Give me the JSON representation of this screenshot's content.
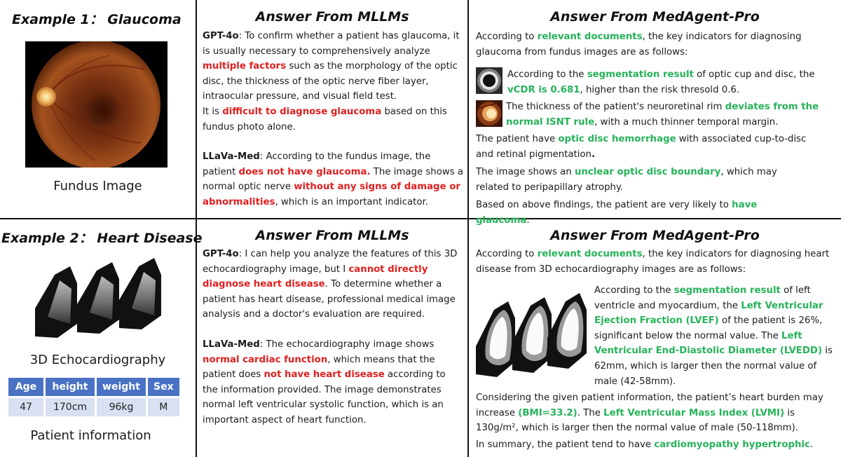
{
  "example1": {
    "title": "Example 1： Glaucoma",
    "image_caption": "Fundus Image",
    "mllm_header": "Answer From MLLMs",
    "agent_header": "Answer From MedAgent-Pro",
    "gpt": {
      "name": "GPT-4o",
      "t1": ": To confirm whether a patient has glaucoma, it is usually necessary to comprehensively analyze ",
      "h1": "multiple factors",
      "t2": " such as the morphology of the optic disc, the thickness of the optic nerve fiber layer, intraocular pressure, and visual field test.",
      "t3": "It is ",
      "h2": "difficult to diagnose glaucoma",
      "t4": " based on this fundus photo alone."
    },
    "llava": {
      "name": "LLaVa-Med",
      "t1": ": According to the fundus image, the patient ",
      "h1": "does not have glaucoma.",
      "t2": " The image shows a normal optic nerve ",
      "h2": "without any signs of damage or abnormalities",
      "t3": ", which is an important indicator."
    },
    "agent": {
      "p1a": "According to ",
      "p1h": "relevant documents",
      "p1b": ", the key indicators for diagnosing glaucoma from fundus images are as follows:",
      "p2a": "According to the ",
      "p2h1": "segmentation result",
      "p2b": " of optic cup and disc, the ",
      "p2h2": "vCDR is 0.681",
      "p2c": ", higher than the risk thresold 0.6.",
      "p3a": "The thickness of the patient's neuroretinal rim ",
      "p3h": "deviates from the normal ISNT rule",
      "p3b": ", with a much thinner temporal margin.",
      "p4a": "The patient have ",
      "p4h": "optic disc hemorrhage",
      "p4b": " with associated cup-to-disc and retinal pigmentation",
      "p4c": ".",
      "p5a": "The image shows an ",
      "p5h": "unclear optic disc boundary",
      "p5b": ", which may related to peripapillary atrophy.",
      "p6a": "Based on above findings, the patient are very likely to ",
      "p6h": "have glaucoma",
      "p6b": "."
    }
  },
  "example2": {
    "title": "Example 2： Heart Disease",
    "image_caption": "3D Echocardiography",
    "patient_caption": "Patient information",
    "table": {
      "headers": [
        "Age",
        "height",
        "weight",
        "Sex"
      ],
      "row": [
        "47",
        "170cm",
        "96kg",
        "M"
      ]
    },
    "mllm_header": "Answer From MLLMs",
    "agent_header": "Answer From MedAgent-Pro",
    "gpt": {
      "name": "GPT-4o",
      "t1": ": I can help you analyze the features of this 3D echocardiography image, but I ",
      "h1": "cannot directly diagnose heart disease",
      "t2": ". To determine whether a patient has heart disease, professional medical image analysis and a doctor's evaluation are required."
    },
    "llava": {
      "name": "LLaVa-Med",
      "t1": ": The echocardiography image shows ",
      "h1": "normal cardiac function",
      "t2": ", which means that the patient does ",
      "h2": "not have heart disease",
      "t3": " according to the information provided. The image demonstrates normal left ventricular systolic function, which is an important aspect of heart function."
    },
    "agent": {
      "p1a": "According to ",
      "p1h": "relevant documents",
      "p1b": ", the key indicators for diagnosing heart disease from 3D echocardiography images are as follows:",
      "p2a": "According to the ",
      "p2h1": "segmentation result",
      "p2b": " of left ventricle and myocardium,  the ",
      "p2h2": "Left Ventricular Ejection Fraction (LVEF)",
      "p2c": " of the patient is 26%, significant below the normal value. The ",
      "p2h3": "Left Ventricular End-Diastolic Diameter (LVEDD)",
      "p2d": " is 62mm, which is larger then the normal value of male (42-58mm).",
      "p3a": "Considering the given patient information, the patient’s heart burden may increase ",
      "p3h1": "(BMI=33.2)",
      "p3b": ". The ",
      "p3h2": "Left Ventricular Mass Index (LVMI)",
      "p3c": " is 130g/m², which is larger then the normal value of male (50-118mm).",
      "p4a": "In summary, the patient tend to have ",
      "p4h": "cardiomyopathy hypertrophic",
      "p4b": "."
    }
  },
  "colors": {
    "negative": "#e02020",
    "positive": "#27b35a",
    "table_header": "#4a72c4",
    "table_cell": "#d9e0f1"
  }
}
